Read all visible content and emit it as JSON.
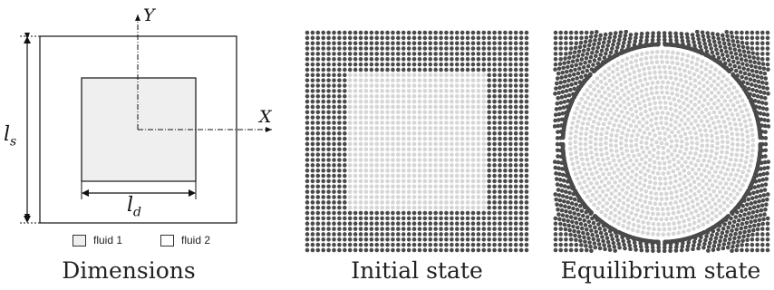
{
  "dimensions_panel": {
    "caption": "Dimensions",
    "axis_y": "Y",
    "axis_x": "X",
    "label_ls": "l",
    "label_ls_sub": "s",
    "label_ld": "l",
    "label_ld_sub": "d",
    "legend": [
      {
        "label": "fluid 1",
        "fill": "#efefef"
      },
      {
        "label": "fluid 2",
        "fill": "#ffffff"
      }
    ]
  },
  "initial_panel": {
    "caption": "Initial state"
  },
  "equilibrium_panel": {
    "caption": "Equilibrium state"
  },
  "colors": {
    "dark_particle": "#4a4a4a",
    "light_particle": "#d6d6d6",
    "fluid1_fill": "#efefef"
  }
}
